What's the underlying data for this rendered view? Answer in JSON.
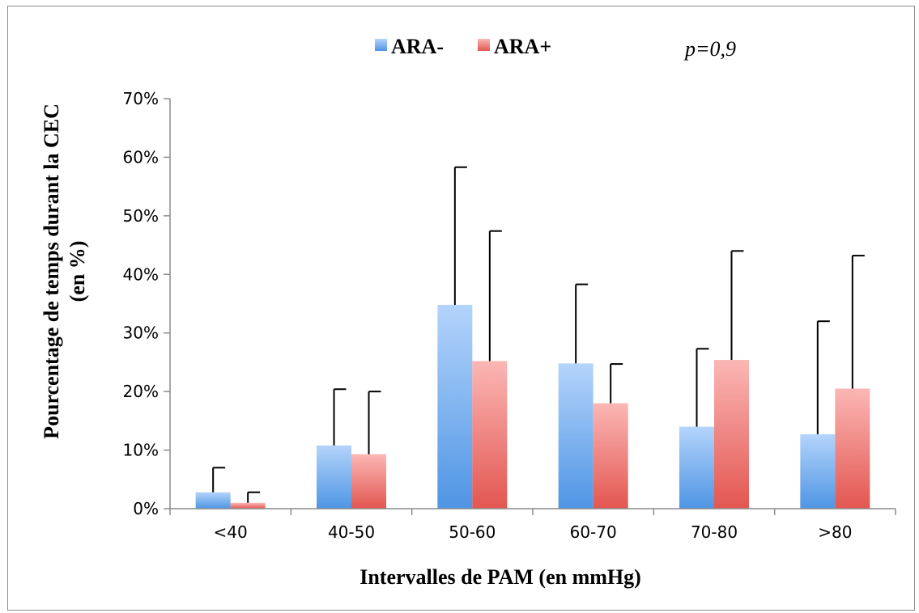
{
  "chart_data": {
    "type": "bar",
    "title": "",
    "xlabel": "Intervalles de PAM (en mmHg)",
    "ylabel": [
      "Pourcentage de temps durant la CEC",
      "(en %)"
    ],
    "categories": [
      "<40",
      "40-50",
      "50-60",
      "60-70",
      "70-80",
      ">80"
    ],
    "series": [
      {
        "name": "ARA-",
        "values": [
          0.028,
          0.108,
          0.348,
          0.248,
          0.14,
          0.127
        ],
        "error_upper": [
          0.07,
          0.204,
          0.583,
          0.383,
          0.273,
          0.32
        ],
        "color_light": "#b4d4fb",
        "color_dark": "#4f95e4"
      },
      {
        "name": "ARA+",
        "values": [
          0.01,
          0.093,
          0.252,
          0.18,
          0.254,
          0.205
        ],
        "error_upper": [
          0.028,
          0.2,
          0.474,
          0.247,
          0.44,
          0.432
        ],
        "color_light": "#fbb7b5",
        "color_dark": "#e35651"
      }
    ],
    "ylim": [
      0,
      0.7
    ],
    "yticks": [
      0,
      0.1,
      0.2,
      0.3,
      0.4,
      0.5,
      0.6,
      0.7
    ],
    "ytick_labels": [
      "0%",
      "10%",
      "20%",
      "30%",
      "40%",
      "50%",
      "60%",
      "70%"
    ],
    "grid": false,
    "legend": "top-center",
    "annotation": "p=0,9"
  }
}
